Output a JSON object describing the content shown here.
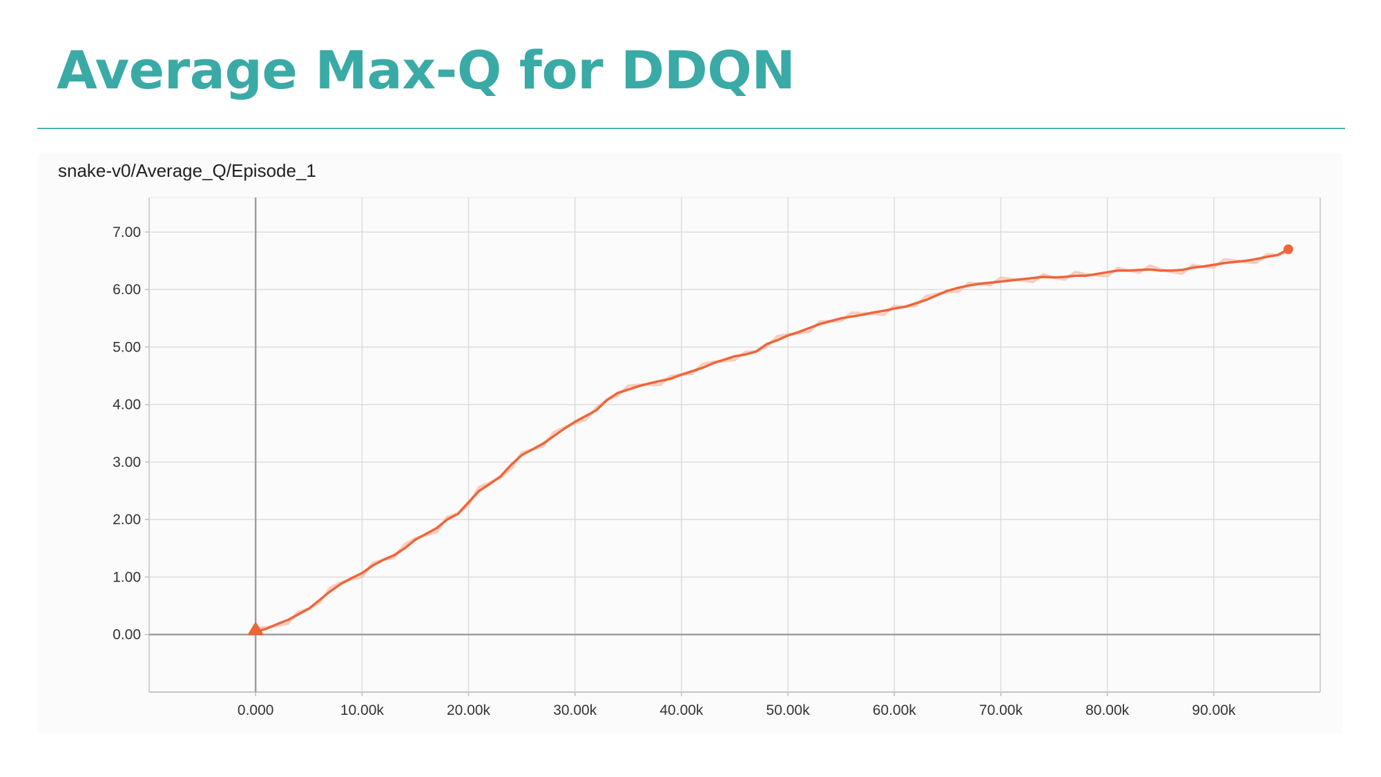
{
  "slide": {
    "title": "Average Max-Q for DDQN"
  },
  "chart_data": {
    "type": "line",
    "title": "snake-v0/Average_Q/Episode_1",
    "xlabel": "",
    "ylabel": "",
    "xlim": [
      -10000,
      100000
    ],
    "ylim": [
      -1,
      7.6
    ],
    "x_ticks": [
      0,
      10000,
      20000,
      30000,
      40000,
      50000,
      60000,
      70000,
      80000,
      90000
    ],
    "x_tick_labels": [
      "0.000",
      "10.00k",
      "20.00k",
      "30.00k",
      "40.00k",
      "50.00k",
      "60.00k",
      "70.00k",
      "80.00k",
      "90.00k"
    ],
    "y_ticks": [
      0,
      1,
      2,
      3,
      4,
      5,
      6,
      7
    ],
    "y_tick_labels": [
      "0.00",
      "1.00",
      "2.00",
      "3.00",
      "4.00",
      "5.00",
      "6.00",
      "7.00"
    ],
    "grid": true,
    "legend": "none",
    "colors": {
      "smoothed": "#f0643a",
      "raw": "#f7c3b0",
      "grid": "#dcdcdc",
      "axis": "#9e9e9e"
    },
    "series": [
      {
        "x": [
          0,
          1000,
          2000,
          3000,
          4000,
          5000,
          6000,
          7000,
          8000,
          9000,
          10000,
          11000,
          12000,
          13000,
          14000,
          15000,
          16000,
          17000,
          18000,
          19000,
          20000,
          21000,
          22000,
          23000,
          24000,
          25000,
          26000,
          27000,
          28000,
          29000,
          30000,
          31000,
          32000,
          33000,
          34000,
          35000,
          36000,
          37000,
          38000,
          39000,
          40000,
          41000,
          42000,
          43000,
          44000,
          45000,
          46000,
          47000,
          48000,
          49000,
          50000,
          51000,
          52000,
          53000,
          54000,
          55000,
          56000,
          57000,
          58000,
          59000,
          60000,
          61000,
          62000,
          63000,
          64000,
          65000,
          66000,
          67000,
          68000,
          69000,
          70000,
          71000,
          72000,
          73000,
          74000,
          75000,
          76000,
          77000,
          78000,
          79000,
          80000,
          81000,
          82000,
          83000,
          84000,
          85000,
          86000,
          87000,
          88000,
          89000,
          90000,
          91000,
          92000,
          93000,
          94000,
          95000,
          96000,
          97000
        ],
        "y": [
          0.05,
          0.1,
          0.18,
          0.25,
          0.35,
          0.45,
          0.6,
          0.75,
          0.88,
          0.98,
          1.07,
          1.2,
          1.3,
          1.38,
          1.5,
          1.65,
          1.75,
          1.85,
          2.0,
          2.1,
          2.3,
          2.5,
          2.62,
          2.75,
          2.95,
          3.12,
          3.22,
          3.32,
          3.45,
          3.58,
          3.7,
          3.8,
          3.9,
          4.08,
          4.2,
          4.26,
          4.32,
          4.37,
          4.41,
          4.45,
          4.52,
          4.58,
          4.64,
          4.72,
          4.78,
          4.84,
          4.87,
          4.92,
          5.05,
          5.12,
          5.2,
          5.26,
          5.33,
          5.4,
          5.45,
          5.5,
          5.53,
          5.56,
          5.6,
          5.63,
          5.67,
          5.7,
          5.76,
          5.82,
          5.9,
          5.98,
          6.03,
          6.07,
          6.1,
          6.12,
          6.14,
          6.16,
          6.18,
          6.2,
          6.22,
          6.21,
          6.22,
          6.24,
          6.24,
          6.27,
          6.3,
          6.33,
          6.33,
          6.34,
          6.35,
          6.33,
          6.33,
          6.34,
          6.38,
          6.4,
          6.43,
          6.46,
          6.48,
          6.5,
          6.53,
          6.57,
          6.6,
          6.7
        ]
      }
    ]
  }
}
